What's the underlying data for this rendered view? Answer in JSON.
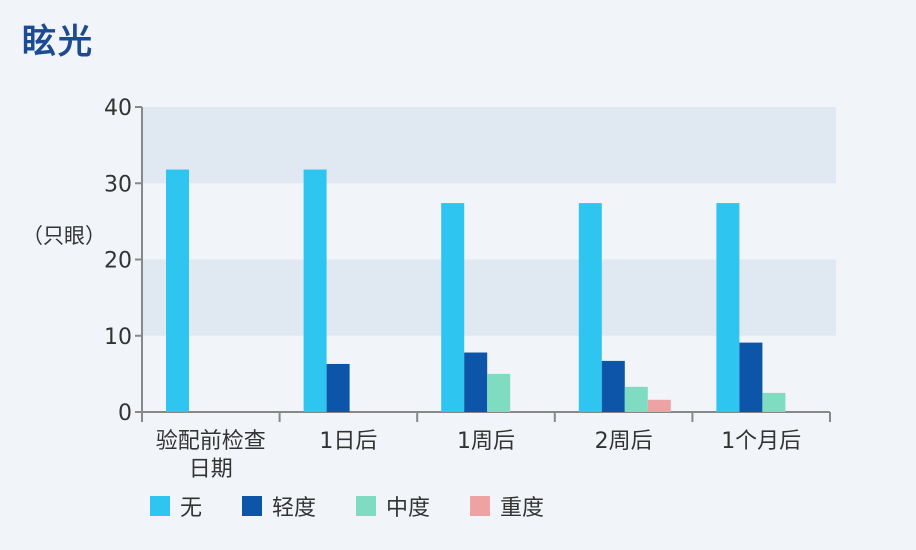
{
  "title": "眩光",
  "ylabel": "（只眼）",
  "chart_data": {
    "type": "bar",
    "title": "眩光",
    "ylabel": "（只眼）",
    "xlabel": "",
    "ylim": [
      0,
      40
    ],
    "yticks": [
      0,
      10,
      20,
      30,
      40
    ],
    "grid": "alternating horizontal bands",
    "legend_position": "bottom",
    "categories": [
      "验配前检查日期",
      "1日后",
      "1周后",
      "2周后",
      "1个月后"
    ],
    "category_lines": [
      [
        "验配前检查",
        "日期"
      ],
      [
        "1日后"
      ],
      [
        "1周后"
      ],
      [
        "2周后"
      ],
      [
        "1个月后"
      ]
    ],
    "series": [
      {
        "name": "无",
        "color": "#2ec6f0",
        "values": [
          31.8,
          31.8,
          27.4,
          27.4,
          27.4
        ]
      },
      {
        "name": "轻度",
        "color": "#0d55a8",
        "values": [
          0,
          6.3,
          7.8,
          6.7,
          9.1
        ]
      },
      {
        "name": "中度",
        "color": "#7fdcc0",
        "values": [
          0,
          0,
          5.0,
          3.3,
          2.5
        ]
      },
      {
        "name": "重度",
        "color": "#eea3a3",
        "values": [
          0,
          0,
          0,
          1.6,
          0
        ]
      }
    ]
  }
}
